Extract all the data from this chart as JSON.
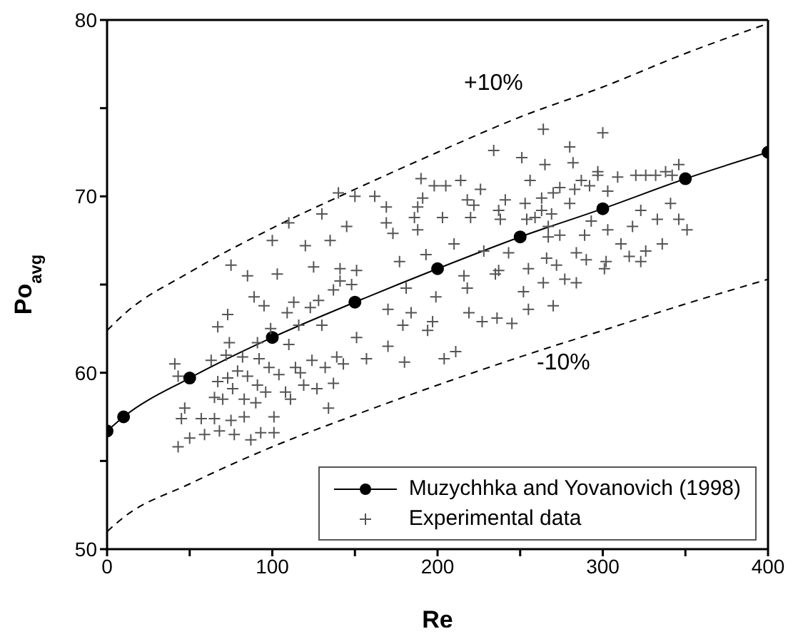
{
  "chart_data": {
    "type": "scatter",
    "xlabel": "Re",
    "ylabel": "Po$_{avg}$",
    "xlim": [
      0,
      400
    ],
    "ylim": [
      50,
      80
    ],
    "xticks": [
      0,
      {
        "value": 50,
        "label": null
      },
      100,
      {
        "value": 150,
        "label": null
      },
      200,
      {
        "value": 250,
        "label": null
      },
      300,
      {
        "value": 350,
        "label": null
      },
      400
    ],
    "yticks": [
      50,
      {
        "value": 55,
        "label": null
      },
      60,
      {
        "value": 65,
        "label": null
      },
      70,
      {
        "value": 75,
        "label": null
      },
      80
    ],
    "grid": false,
    "legend": "bottom right",
    "annotations": [
      "+10%",
      "-10%"
    ],
    "series": [
      {
        "name": "Muzychhka and Yovanovich (1998)",
        "type": "line",
        "color": "#000000",
        "marker": "circle",
        "line_style": "solid",
        "x": [
          0,
          10,
          50,
          100,
          150,
          200,
          250,
          300,
          350,
          400
        ],
        "values": [
          56.7,
          57.5,
          59.7,
          62,
          64,
          65.9,
          67.7,
          69.3,
          71,
          72.5
        ]
      },
      {
        "type": "line",
        "color": "#000000",
        "marker": "none",
        "line_style": "dashed",
        "x": [
          0,
          10,
          50,
          100,
          150,
          200,
          250,
          300,
          350,
          400
        ],
        "values": [
          62.4,
          63.3,
          65.7,
          68.2,
          70.4,
          72.5,
          74.5,
          76.2,
          78.1,
          79.8
        ]
      },
      {
        "type": "line",
        "color": "#000000",
        "marker": "none",
        "line_style": "dashed",
        "x": [
          0,
          10,
          50,
          100,
          150,
          200,
          250,
          300,
          350,
          400
        ],
        "values": [
          51.0,
          51.8,
          53.7,
          55.8,
          57.6,
          59.3,
          60.9,
          62.4,
          63.9,
          65.3
        ]
      },
      {
        "name": "Experimental data",
        "color": "#555555",
        "marker": "cross",
        "x": [
          75,
          85,
          103,
          89,
          95,
          113,
          123,
          128,
          109,
          73,
          67,
          99,
          116,
          130,
          74,
          91,
          110,
          72,
          82,
          63,
          92,
          79,
          98,
          104,
          114,
          117,
          124,
          132,
          139,
          143,
          67,
          73,
          85,
          76,
          91,
          96,
          108,
          111,
          119,
          127,
          137,
          65,
          70,
          83,
          90,
          134,
          57,
          65,
          75,
          83,
          101,
          50,
          59,
          68,
          77,
          87,
          93,
          101,
          43,
          141,
          151,
          141,
          137,
          148,
          170,
          151,
          170,
          157,
          43,
          47,
          41,
          45,
          234,
          251,
          264,
          280,
          300,
          265,
          282,
          297,
          256,
          190,
          214,
          198,
          205,
          226,
          162,
          169,
          188,
          191,
          218,
          222,
          241,
          237,
          253,
          263,
          270,
          274,
          280,
          283,
          287,
          292,
          263,
          269,
          259,
          254,
          169,
          186,
          188,
          203,
          220,
          238,
          173,
          267,
          267,
          274,
          289,
          293,
          210,
          228,
          243,
          193,
          177,
          266,
          272,
          284,
          290,
          255,
          237,
          235,
          277,
          284,
          264,
          216,
          218,
          181,
          252,
          199,
          184,
          270,
          255,
          197,
          194,
          219,
          227,
          236,
          245,
          179,
          180,
          204,
          211,
          297,
          309,
          320,
          326,
          332,
          338,
          342,
          346,
          303,
          341,
          323,
          333,
          346,
          351,
          303,
          318,
          311,
          336,
          302,
          301,
          316,
          326,
          323,
          100,
          110,
          120,
          130,
          140,
          150,
          145,
          125,
          135
        ],
        "values": [
          66.1,
          65.5,
          65.6,
          64.3,
          63.8,
          64.0,
          63.7,
          64.1,
          63.4,
          63.3,
          62.6,
          62.5,
          62.7,
          62.7,
          61.7,
          61.7,
          61.6,
          61.0,
          60.9,
          60.7,
          60.8,
          60.1,
          60.3,
          59.9,
          60.3,
          60.0,
          60.7,
          60.3,
          60.9,
          60.5,
          59.5,
          59.7,
          59.8,
          59.1,
          59.3,
          58.9,
          58.9,
          58.5,
          59.3,
          59.1,
          59.4,
          58.6,
          58.5,
          58.5,
          58.3,
          58.0,
          57.4,
          57.4,
          57.3,
          57.5,
          57.5,
          56.3,
          56.5,
          56.7,
          56.5,
          56.2,
          56.6,
          56.6,
          55.8,
          65.9,
          65.8,
          65.2,
          64.7,
          65.0,
          63.6,
          62.0,
          61.5,
          60.8,
          59.8,
          58.0,
          60.5,
          57.4,
          72.6,
          72.2,
          73.8,
          72.8,
          73.6,
          71.8,
          71.9,
          71.4,
          70.9,
          71.0,
          70.9,
          70.6,
          70.6,
          70.4,
          70.0,
          69.4,
          69.4,
          69.9,
          69.8,
          69.5,
          69.8,
          69.2,
          69.6,
          69.9,
          70.2,
          70.5,
          69.6,
          70.4,
          70.9,
          70.6,
          69.2,
          69.0,
          68.8,
          68.7,
          68.5,
          68.8,
          68.1,
          68.8,
          68.8,
          68.7,
          67.9,
          68.3,
          67.7,
          67.8,
          67.8,
          68.6,
          67.3,
          66.9,
          66.8,
          66.7,
          66.3,
          66.5,
          66.1,
          66.8,
          66.4,
          65.9,
          65.8,
          65.6,
          65.3,
          65.1,
          65.1,
          65.5,
          64.8,
          64.8,
          64.6,
          64.3,
          63.4,
          63.8,
          63.6,
          62.9,
          62.4,
          63.4,
          62.9,
          63.1,
          62.8,
          62.7,
          60.6,
          60.8,
          61.2,
          71.2,
          71.1,
          71.2,
          71.2,
          71.2,
          71.4,
          71.2,
          71.8,
          70.3,
          69.6,
          69.2,
          68.7,
          68.7,
          68.1,
          68.1,
          68.3,
          67.3,
          67.3,
          66.3,
          65.9,
          66.6,
          66.9,
          66.3,
          67.5,
          68.5,
          67.2,
          69.0,
          70.2,
          70.0,
          68.3,
          66.0,
          67.5
        ]
      }
    ]
  }
}
